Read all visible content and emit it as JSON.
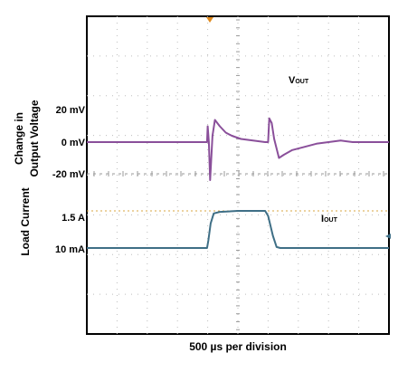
{
  "chart_data": {
    "type": "line",
    "title": "",
    "xlabel": "500 µs per division",
    "divisions": {
      "x": 10,
      "y": 8
    },
    "ylabels": {
      "voltage": [
        "Change in",
        "Output Voltage"
      ],
      "current": "Load Current"
    },
    "tick_labels": {
      "v_pos": "20 mV",
      "v_zero": "0 mV",
      "v_neg": "-20 mV",
      "i_high": "1.5 A",
      "i_low": "10 mA"
    },
    "series": [
      {
        "name": "VOUT",
        "label_main": "V",
        "label_sub": "OUT",
        "color": "#8a4f9a",
        "unit": "mV",
        "x_us": [
          0,
          1000,
          1990,
          2000,
          2020,
          2040,
          2080,
          2120,
          2200,
          2300,
          2400,
          2550,
          2750,
          2950,
          3000,
          3020,
          3060,
          3100,
          3180,
          3260,
          3400,
          3600,
          3800,
          4000,
          4200,
          4400,
          4600,
          4800,
          5000
        ],
        "values": [
          0,
          0,
          0,
          10,
          0,
          -24,
          4,
          14,
          10,
          6,
          4,
          2,
          1,
          0,
          0,
          15,
          12,
          2,
          -10,
          -8,
          -5,
          -3,
          -1,
          0,
          1,
          0,
          0,
          0,
          0
        ]
      },
      {
        "name": "IOUT",
        "label_main": "I",
        "label_sub": "OUT",
        "color": "#3f6f86",
        "unit": "A",
        "x_us": [
          0,
          1000,
          1990,
          2010,
          2050,
          2100,
          2200,
          2500,
          2950,
          3000,
          3080,
          3140,
          3200,
          3500,
          4000,
          5000
        ],
        "values": [
          0.01,
          0.01,
          0.01,
          0.3,
          1.0,
          1.4,
          1.46,
          1.5,
          1.5,
          1.3,
          0.5,
          0.05,
          0.01,
          0.01,
          0.01,
          0.01
        ]
      }
    ]
  }
}
